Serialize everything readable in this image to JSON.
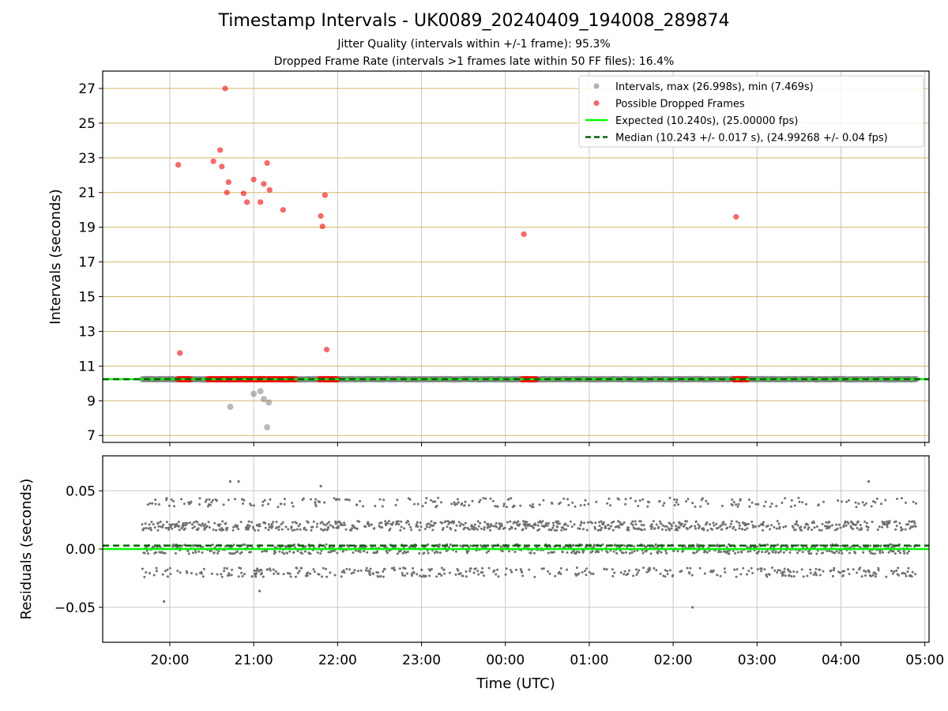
{
  "title": "Timestamp Intervals - UK0089_20240409_194008_289874",
  "subtitle_jitter": "Jitter Quality (intervals within +/-1 frame): 95.3%",
  "subtitle_dropped": "Dropped Frame Rate (intervals >1 frames late within 50 FF files): 16.4%",
  "colors": {
    "intervals": "#808080",
    "dropped": "#ff0000",
    "expected": "#00ff00",
    "median": "#006400",
    "hgrid": "#d2b76a",
    "vgrid": "#c8c8c8"
  },
  "chart_data": [
    {
      "type": "scatter",
      "panel": "intervals",
      "ylabel": "Intervals (seconds)",
      "ylim": [
        6.6,
        28.0
      ],
      "yticks": [
        7,
        9,
        11,
        13,
        15,
        17,
        19,
        21,
        23,
        25,
        27
      ],
      "ytick_labels": [
        "7",
        "9",
        "11",
        "13",
        "15",
        "17",
        "19",
        "21",
        "23",
        "25",
        "27"
      ],
      "grid": "horizontal-and-vertical",
      "legend_position": "top-right",
      "legend": [
        "Intervals, max (26.998s), min (7.469s)",
        "Possible Dropped Frames",
        "Expected (10.240s), (25.00000 fps)",
        "Median (10.243 +/- 0.017 s), (24.99268 +/- 0.04 fps)"
      ],
      "series": [
        {
          "name": "Intervals, max (26.998s), min (7.469s)",
          "kind": "scatter",
          "baseline_value": 10.24,
          "time_range_hours": [
            19.67,
            28.9
          ],
          "outliers": [
            [
              20.72,
              8.65
            ],
            [
              21.0,
              9.4
            ],
            [
              21.08,
              9.55
            ],
            [
              21.12,
              9.1
            ],
            [
              21.18,
              8.9
            ],
            [
              21.16,
              7.469
            ]
          ]
        },
        {
          "name": "Possible Dropped Frames",
          "kind": "scatter",
          "points": [
            [
              20.1,
              22.6
            ],
            [
              20.12,
              11.75
            ],
            [
              20.52,
              22.8
            ],
            [
              20.6,
              23.45
            ],
            [
              20.62,
              22.5
            ],
            [
              20.66,
              26.998
            ],
            [
              20.68,
              21.0
            ],
            [
              20.7,
              21.6
            ],
            [
              20.88,
              20.95
            ],
            [
              20.92,
              20.45
            ],
            [
              21.0,
              21.75
            ],
            [
              21.08,
              20.45
            ],
            [
              21.12,
              21.5
            ],
            [
              21.16,
              22.7
            ],
            [
              21.19,
              21.15
            ],
            [
              21.35,
              20.0
            ],
            [
              21.8,
              19.65
            ],
            [
              21.82,
              19.05
            ],
            [
              21.85,
              20.85
            ],
            [
              21.87,
              11.95
            ],
            [
              24.22,
              18.6
            ],
            [
              26.75,
              19.6
            ]
          ],
          "baseline_clusters_hours": [
            [
              20.1,
              20.25
            ],
            [
              20.45,
              20.62
            ],
            [
              20.62,
              21.5
            ],
            [
              21.78,
              22.0
            ],
            [
              24.2,
              24.38
            ],
            [
              26.72,
              26.88
            ]
          ],
          "baseline_value": 10.24
        },
        {
          "name": "Expected (10.240s), (25.00000 fps)",
          "kind": "hline",
          "value": 10.24
        },
        {
          "name": "Median (10.243 +/- 0.017 s), (24.99268 +/- 0.04 fps)",
          "kind": "hline-dashed",
          "value": 10.243
        }
      ]
    },
    {
      "type": "scatter",
      "panel": "residuals",
      "xlabel": "Time (UTC)",
      "ylabel": "Residuals (seconds)",
      "ylim": [
        -0.08,
        0.08
      ],
      "yticks": [
        -0.05,
        0.0,
        0.05
      ],
      "ytick_labels": [
        "−0.05",
        "0.00",
        "0.05"
      ],
      "xlim_hours": [
        19.2,
        29.05
      ],
      "xticks_hours": [
        20,
        21,
        22,
        23,
        24,
        25,
        26,
        27,
        28,
        29
      ],
      "xtick_labels": [
        "20:00",
        "21:00",
        "22:00",
        "23:00",
        "00:00",
        "01:00",
        "02:00",
        "03:00",
        "04:00",
        "05:00"
      ],
      "grid": "both",
      "series": [
        {
          "name": "Residuals",
          "kind": "scatter",
          "bands": [
            0.0,
            0.02,
            -0.02,
            0.04
          ],
          "band_spread": 0.004,
          "outliers": [
            [
              19.93,
              -0.045
            ],
            [
              20.72,
              0.058
            ],
            [
              20.82,
              0.058
            ],
            [
              21.07,
              -0.036
            ],
            [
              21.8,
              0.054
            ],
            [
              26.23,
              -0.05
            ],
            [
              28.33,
              0.058
            ]
          ],
          "time_range_hours": [
            19.67,
            28.9
          ]
        },
        {
          "name": "Expected",
          "kind": "hline",
          "value": 0.0
        },
        {
          "name": "Median",
          "kind": "hline-dashed",
          "value": 0.003
        }
      ]
    }
  ]
}
